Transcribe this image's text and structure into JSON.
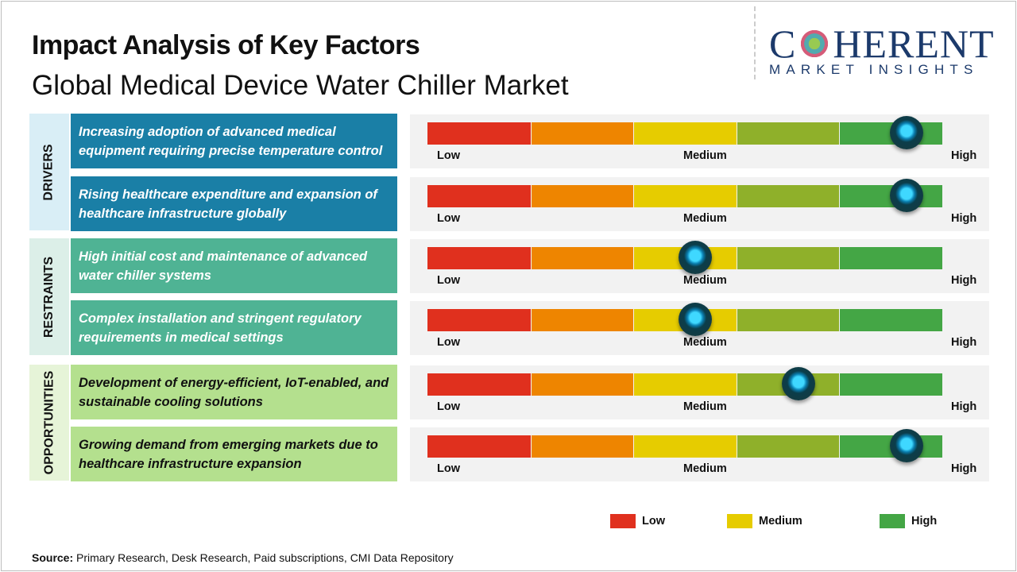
{
  "header": {
    "title": "Impact Analysis of Key Factors",
    "subtitle": "Global Medical Device Water Chiller Market"
  },
  "logo": {
    "main": "COHERENT",
    "sub": "MARKET INSIGHTS"
  },
  "scale_labels": {
    "low": "Low",
    "medium": "Medium",
    "high": "High"
  },
  "segment_colors": [
    "#e0301e",
    "#ee8500",
    "#e6cc00",
    "#8fb02a",
    "#44a645"
  ],
  "categories": [
    {
      "label": "DRIVERS",
      "bg": "#d9eef6",
      "box": "#1a7fa6",
      "text": "#ffffff"
    },
    {
      "label": "RESTRAINTS",
      "bg": "#dcefe8",
      "box": "#4fb394",
      "text": "#ffffff"
    },
    {
      "label": "OPPORTUNITIES",
      "bg": "#e6f4d8",
      "box": "#b4e08e",
      "text": "#111111"
    }
  ],
  "chart_data": {
    "type": "gauge",
    "scale": [
      "Low",
      "Medium",
      "High"
    ],
    "unit": "percent of scale (Low=0, High=100)",
    "factors": [
      {
        "category": "DRIVERS",
        "text": "Increasing adoption of advanced medical equipment requiring precise temperature control",
        "impact": 93
      },
      {
        "category": "DRIVERS",
        "text": "Rising healthcare expenditure and expansion of healthcare infrastructure globally",
        "impact": 93
      },
      {
        "category": "RESTRAINTS",
        "text": "High initial cost and maintenance of advanced water chiller systems",
        "impact": 52
      },
      {
        "category": "RESTRAINTS",
        "text": "Complex installation and stringent regulatory requirements in medical settings",
        "impact": 52
      },
      {
        "category": "OPPORTUNITIES",
        "text": "Development of energy-efficient, IoT-enabled, and sustainable cooling solutions",
        "impact": 72
      },
      {
        "category": "OPPORTUNITIES",
        "text": "Growing demand from emerging markets due to healthcare infrastructure expansion",
        "impact": 93
      }
    ]
  },
  "legend": [
    {
      "label": "Low",
      "color": "#e0301e"
    },
    {
      "label": "Medium",
      "color": "#e6cc00"
    },
    {
      "label": "High",
      "color": "#44a645"
    }
  ],
  "source": {
    "label": "Source:",
    "text": " Primary Research, Desk Research, Paid subscriptions, CMI Data Repository"
  }
}
